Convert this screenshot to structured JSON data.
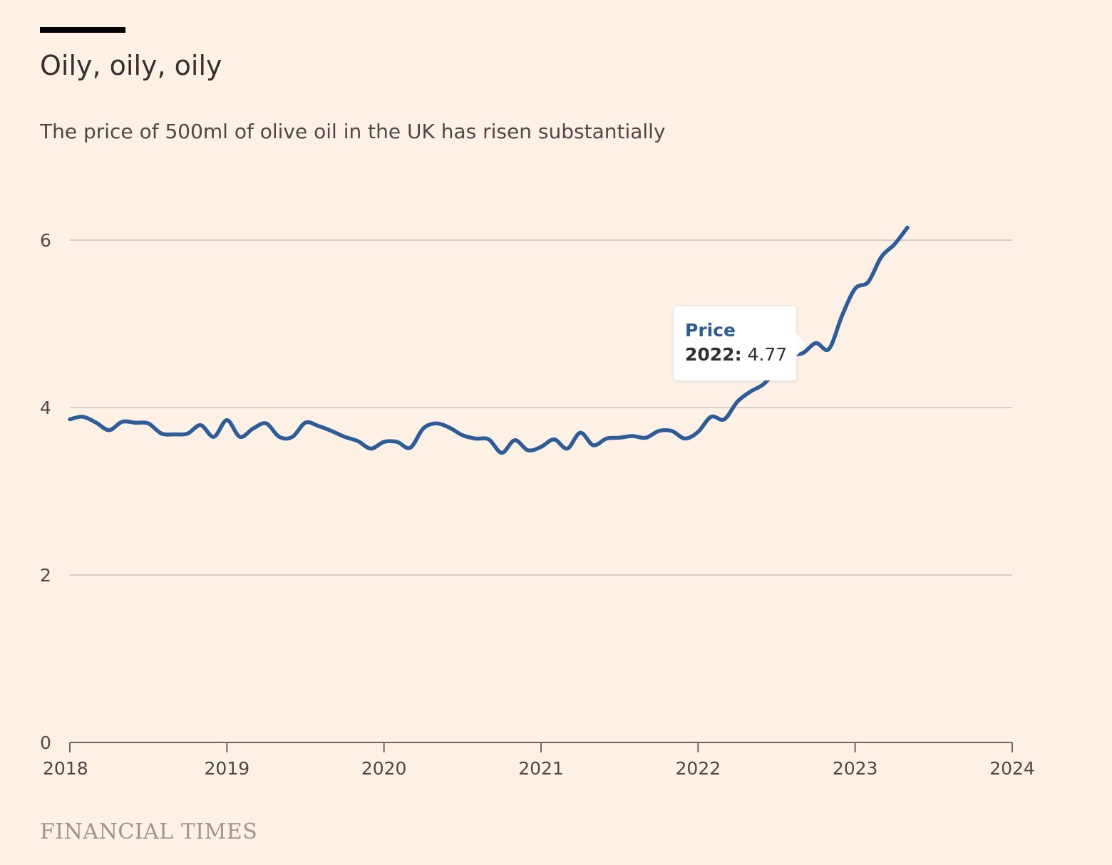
{
  "header": {
    "title": "Oily, oily, oily",
    "subtitle": "The price of 500ml of olive oil in the UK has risen substantially"
  },
  "footer": {
    "source": "FINANCIAL TIMES"
  },
  "tooltip": {
    "series": "Price",
    "label": "2022:",
    "value": "4.77"
  },
  "colors": {
    "line": "#2e5c99",
    "background": "#fdf1e6",
    "grid": "#c9c1b8"
  },
  "chart_data": {
    "type": "line",
    "title": "Oily, oily, oily",
    "subtitle": "The price of 500ml of olive oil in the UK has risen substantially",
    "xlabel": "",
    "ylabel": "",
    "xlim": [
      2018,
      2024
    ],
    "ylim": [
      0,
      6
    ],
    "xticks": [
      2018,
      2019,
      2020,
      2021,
      2022,
      2023,
      2024
    ],
    "yticks": [
      0,
      2,
      4,
      6
    ],
    "grid": true,
    "legend": "none",
    "series": [
      {
        "name": "Price",
        "x": [
          2018.0,
          2018.083,
          2018.167,
          2018.25,
          2018.333,
          2018.417,
          2018.5,
          2018.583,
          2018.667,
          2018.75,
          2018.833,
          2018.917,
          2019.0,
          2019.083,
          2019.167,
          2019.25,
          2019.333,
          2019.417,
          2019.5,
          2019.583,
          2019.667,
          2019.75,
          2019.833,
          2019.917,
          2020.0,
          2020.083,
          2020.167,
          2020.25,
          2020.333,
          2020.417,
          2020.5,
          2020.583,
          2020.667,
          2020.75,
          2020.833,
          2020.917,
          2021.0,
          2021.083,
          2021.167,
          2021.25,
          2021.333,
          2021.417,
          2021.5,
          2021.583,
          2021.667,
          2021.75,
          2021.833,
          2021.917,
          2022.0,
          2022.083,
          2022.167,
          2022.25,
          2022.333,
          2022.417,
          2022.5,
          2022.583,
          2022.667,
          2022.75,
          2022.833,
          2022.917,
          2023.0,
          2023.083,
          2023.167,
          2023.25,
          2023.333
        ],
        "y": [
          3.86,
          3.89,
          3.82,
          3.73,
          3.83,
          3.82,
          3.81,
          3.69,
          3.68,
          3.69,
          3.79,
          3.65,
          3.85,
          3.65,
          3.75,
          3.81,
          3.65,
          3.65,
          3.82,
          3.78,
          3.72,
          3.65,
          3.6,
          3.51,
          3.59,
          3.59,
          3.52,
          3.75,
          3.81,
          3.76,
          3.67,
          3.63,
          3.62,
          3.46,
          3.61,
          3.49,
          3.53,
          3.62,
          3.51,
          3.7,
          3.55,
          3.63,
          3.64,
          3.66,
          3.64,
          3.72,
          3.72,
          3.63,
          3.71,
          3.89,
          3.86,
          4.07,
          4.19,
          4.28,
          4.45,
          4.62,
          4.65,
          4.77,
          4.7,
          5.1,
          5.42,
          5.5,
          5.8,
          5.95,
          6.15
        ]
      }
    ],
    "annotations": [
      {
        "type": "tooltip",
        "series": "Price",
        "x_label": "2022:",
        "value": 4.77
      }
    ]
  }
}
